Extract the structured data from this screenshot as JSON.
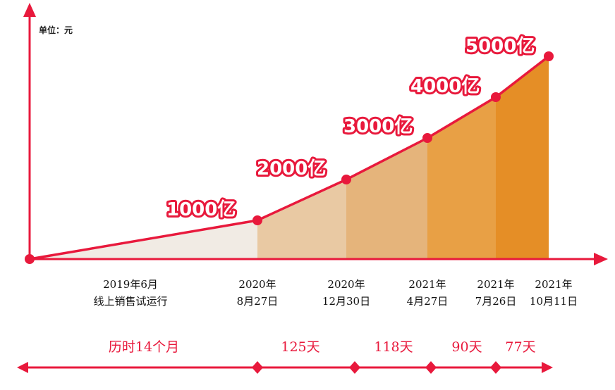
{
  "unit_label": "单位：元",
  "colors": {
    "accent": "#e8193c",
    "fills": [
      "#f1ebe4",
      "#ecd9c3",
      "#e9c9a3",
      "#e5b47b",
      "#e8a045",
      "#e58e26"
    ]
  },
  "chart_data": {
    "type": "area",
    "ylabel": "单位：元",
    "points": [
      {
        "x_lines": [
          "2019年6月",
          "线上销售试运行"
        ],
        "value": 0,
        "label": ""
      },
      {
        "x_lines": [
          "2020年",
          "8月27日"
        ],
        "value": 1000,
        "label": "1000亿"
      },
      {
        "x_lines": [
          "2020年",
          "12月30日"
        ],
        "value": 2000,
        "label": "2000亿"
      },
      {
        "x_lines": [
          "2021年",
          "4月27日"
        ],
        "value": 3000,
        "label": "3000亿"
      },
      {
        "x_lines": [
          "2021年",
          "7月26日"
        ],
        "value": 4000,
        "label": "4000亿"
      },
      {
        "x_lines": [
          "2021年",
          "10月11日"
        ],
        "value": 5000,
        "label": "5000亿"
      }
    ],
    "durations": [
      "历时14个月",
      "125天",
      "118天",
      "90天",
      "77天"
    ]
  }
}
